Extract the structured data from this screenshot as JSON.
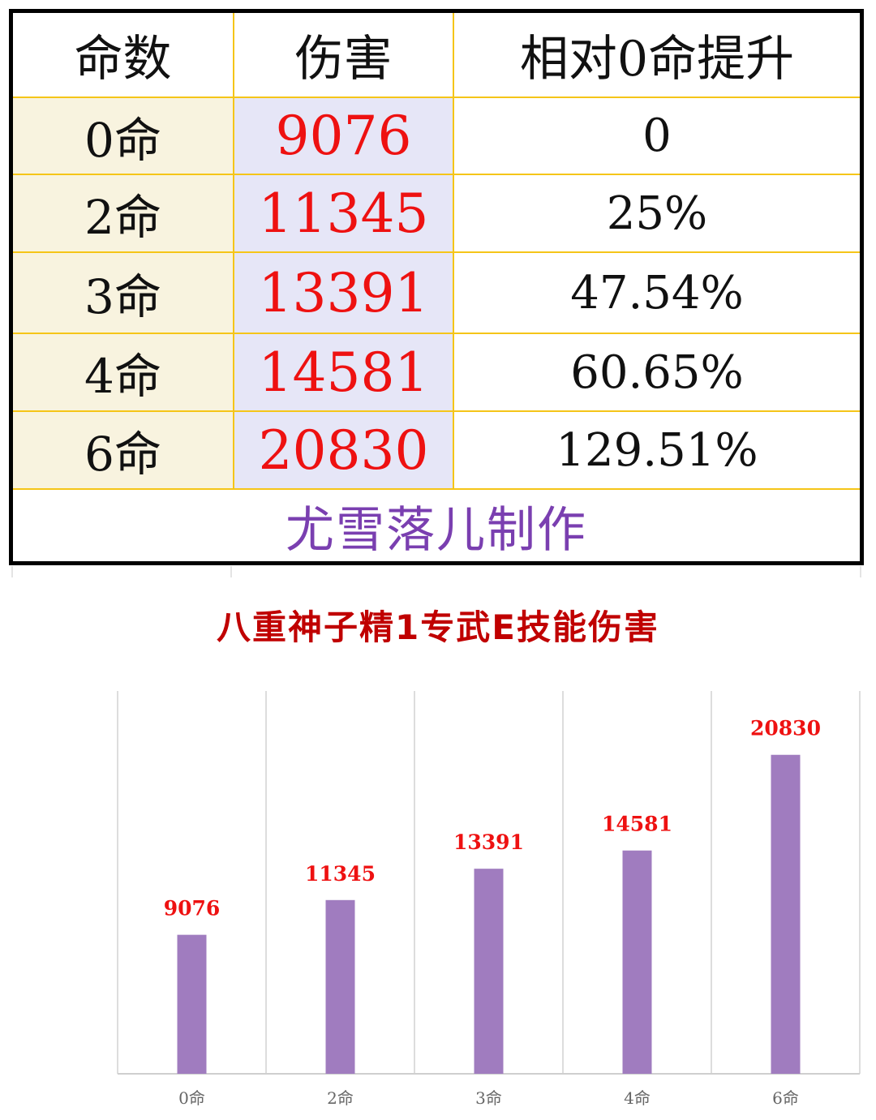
{
  "table": {
    "headers": [
      "命数",
      "伤害",
      "相对0命提升"
    ],
    "rows": [
      {
        "constellation": "0命",
        "damage": "9076",
        "increase": "0"
      },
      {
        "constellation": "2命",
        "damage": "11345",
        "increase": "25%"
      },
      {
        "constellation": "3命",
        "damage": "13391",
        "increase": "47.54%"
      },
      {
        "constellation": "4命",
        "damage": "14581",
        "increase": "60.65%"
      },
      {
        "constellation": "6命",
        "damage": "20830",
        "increase": "129.51%"
      }
    ],
    "credit": "尤雪落儿制作"
  },
  "colors": {
    "damage_text": "#ee1111",
    "bar": "#a07cbf",
    "title": "#c00000",
    "grid_border": "#f5c518",
    "credit": "#7a3fb0"
  },
  "chart_data": {
    "type": "bar",
    "title": "八重神子精1专武E技能伤害",
    "categories": [
      "0命",
      "2命",
      "3命",
      "4命",
      "6命"
    ],
    "values": [
      9076,
      11345,
      13391,
      14581,
      20830
    ],
    "xlabel": "",
    "ylabel": "",
    "ylim": [
      0,
      25000
    ],
    "grid": "vertical-separators",
    "legend": "none",
    "data_labels": true
  }
}
